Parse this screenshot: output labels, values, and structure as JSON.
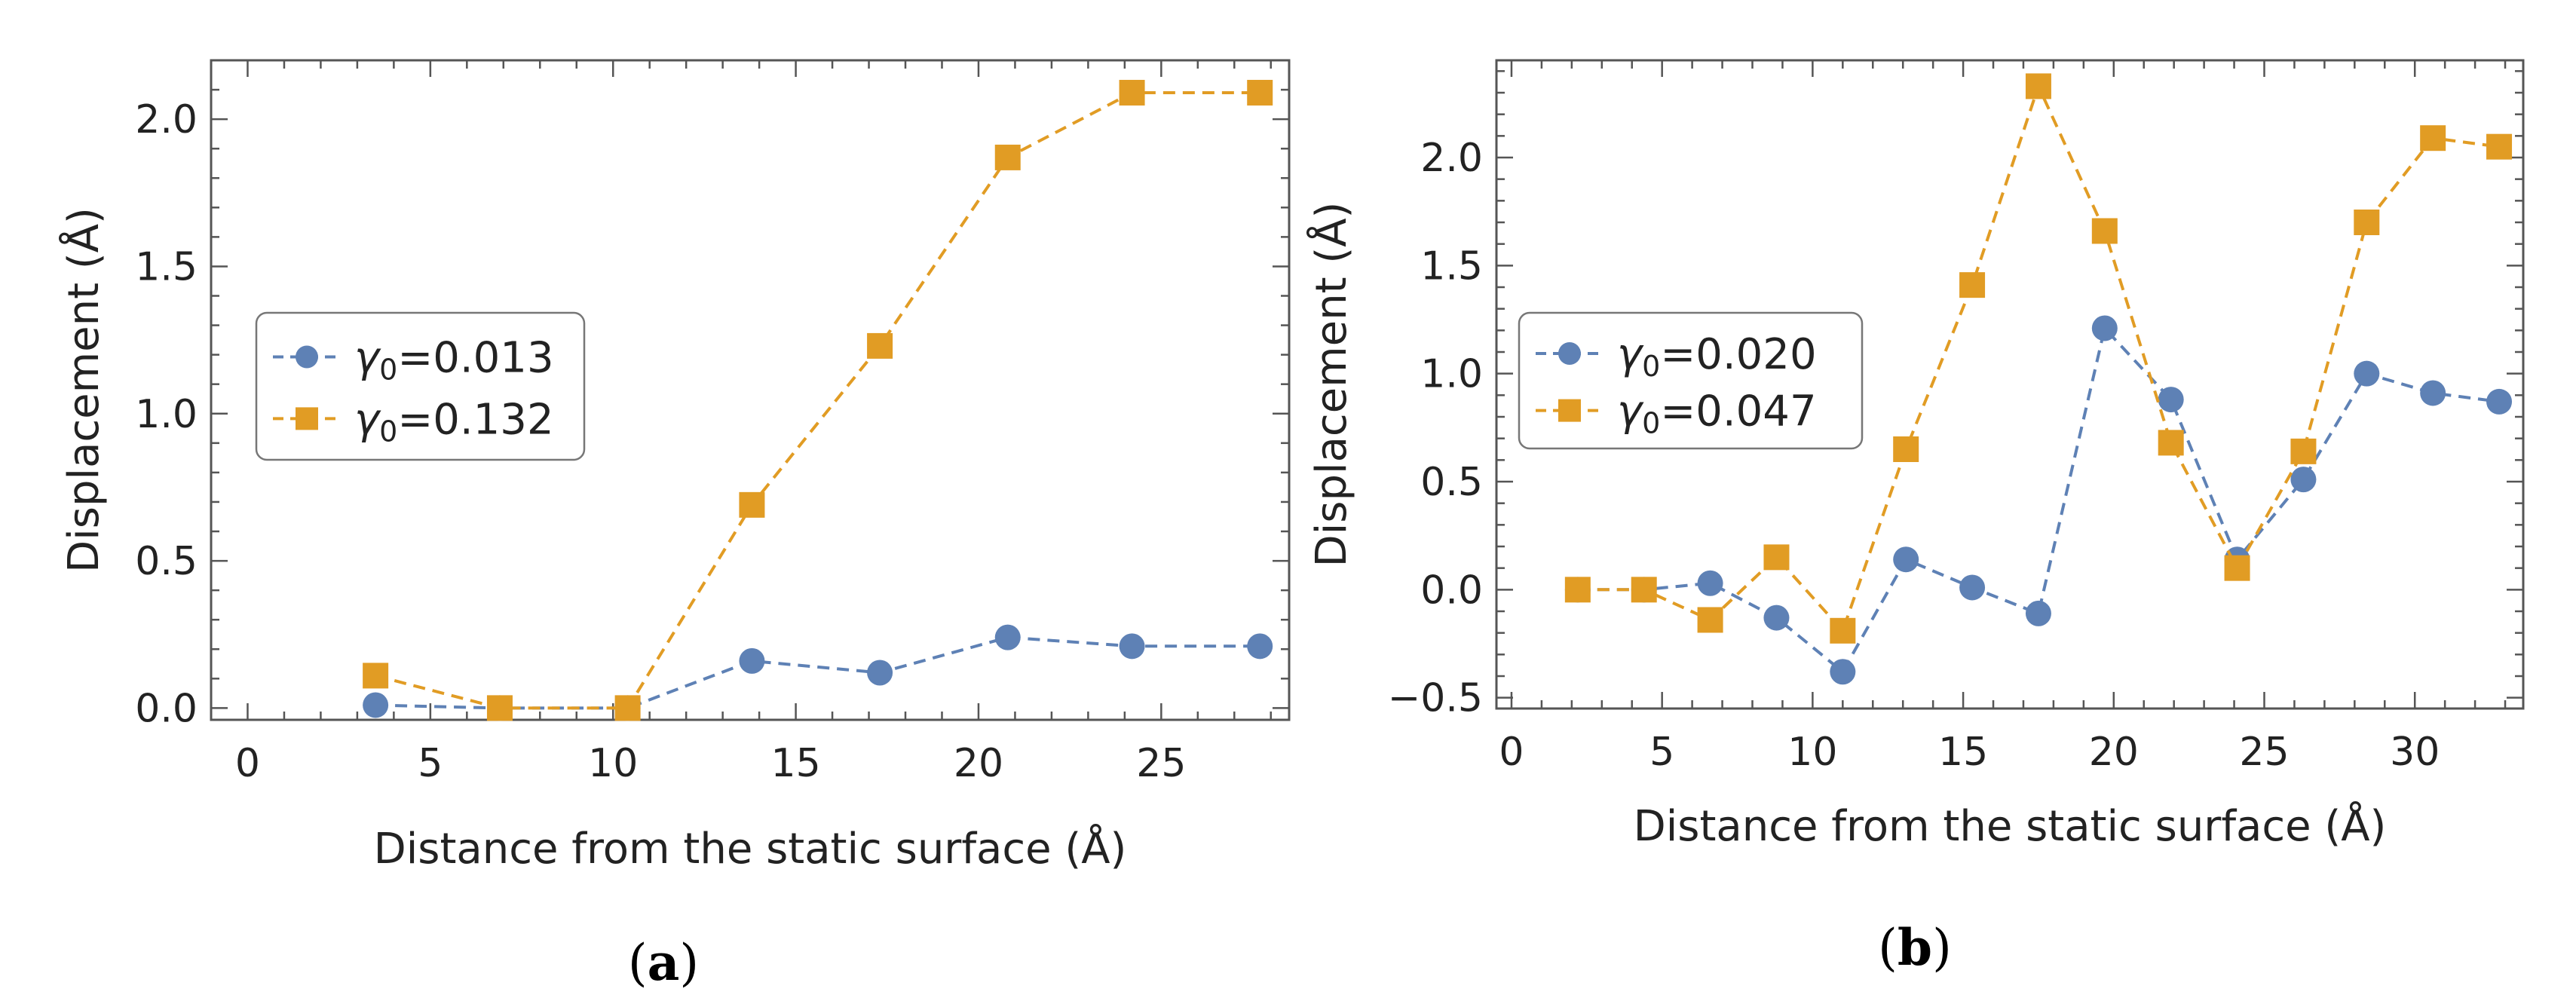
{
  "figure": {
    "panels": [
      "a",
      "b"
    ]
  },
  "chart_data": [
    {
      "type": "line",
      "panel_label": "a",
      "xlabel": "Distance from the static surface (Å)",
      "ylabel": "Displacement (Å)",
      "xlim": [
        -1,
        28.5
      ],
      "ylim": [
        -0.04,
        2.2
      ],
      "xticks": [
        0,
        5,
        10,
        15,
        20,
        25
      ],
      "yticks": [
        0.0,
        0.5,
        1.0,
        1.5,
        2.0
      ],
      "xtick_labels": [
        "0",
        "5",
        "10",
        "15",
        "20",
        "25"
      ],
      "ytick_labels": [
        "0.0",
        "0.5",
        "1.0",
        "1.5",
        "2.0"
      ],
      "legend_position": "center-left",
      "series": [
        {
          "name": "γ0=0.013",
          "legend_symbol": "γ",
          "legend_subscript": "0",
          "legend_value": "=0.013",
          "color": "#5e81b5",
          "marker": "circle",
          "x": [
            3.5,
            6.9,
            10.4,
            13.8,
            17.3,
            20.8,
            24.2,
            27.7
          ],
          "y": [
            0.01,
            0.0,
            0.0,
            0.16,
            0.12,
            0.24,
            0.21,
            0.21
          ]
        },
        {
          "name": "γ0=0.132",
          "legend_symbol": "γ",
          "legend_subscript": "0",
          "legend_value": "=0.132",
          "color": "#e19c24",
          "marker": "square",
          "x": [
            3.5,
            6.9,
            10.4,
            13.8,
            17.3,
            20.8,
            24.2,
            27.7
          ],
          "y": [
            0.11,
            0.0,
            0.0,
            0.69,
            1.23,
            1.87,
            2.09,
            2.09
          ]
        }
      ]
    },
    {
      "type": "line",
      "panel_label": "b",
      "xlabel": "Distance from the static surface (Å)",
      "ylabel": "Displacement (Å)",
      "xlim": [
        -0.5,
        33.6
      ],
      "ylim": [
        -0.55,
        2.45
      ],
      "xticks": [
        0,
        5,
        10,
        15,
        20,
        25,
        30
      ],
      "yticks": [
        -0.5,
        0.0,
        0.5,
        1.0,
        1.5,
        2.0
      ],
      "xtick_labels": [
        "0",
        "5",
        "10",
        "15",
        "20",
        "25",
        "30"
      ],
      "ytick_labels": [
        "−0.5",
        "0.0",
        "0.5",
        "1.0",
        "1.5",
        "2.0"
      ],
      "legend_position": "center-left",
      "series": [
        {
          "name": "γ0=0.020",
          "legend_symbol": "γ",
          "legend_subscript": "0",
          "legend_value": "=0.020",
          "color": "#5e81b5",
          "marker": "circle",
          "x": [
            2.2,
            4.4,
            6.6,
            8.8,
            11.0,
            13.1,
            15.3,
            17.5,
            19.7,
            21.9,
            24.1,
            26.3,
            28.4,
            30.6,
            32.8
          ],
          "y": [
            0.0,
            0.0,
            0.03,
            -0.13,
            -0.38,
            0.14,
            0.01,
            -0.11,
            1.21,
            0.88,
            0.14,
            0.51,
            1.0,
            0.91,
            0.87
          ]
        },
        {
          "name": "γ0=0.047",
          "legend_symbol": "γ",
          "legend_subscript": "0",
          "legend_value": "=0.047",
          "color": "#e19c24",
          "marker": "square",
          "x": [
            2.2,
            4.4,
            6.6,
            8.8,
            11.0,
            13.1,
            15.3,
            17.5,
            19.7,
            21.9,
            24.1,
            26.3,
            28.4,
            30.6,
            32.8
          ],
          "y": [
            0.0,
            0.0,
            -0.14,
            0.15,
            -0.19,
            0.65,
            1.41,
            2.33,
            1.66,
            0.68,
            0.1,
            0.64,
            1.7,
            2.09,
            2.05
          ]
        }
      ]
    }
  ]
}
